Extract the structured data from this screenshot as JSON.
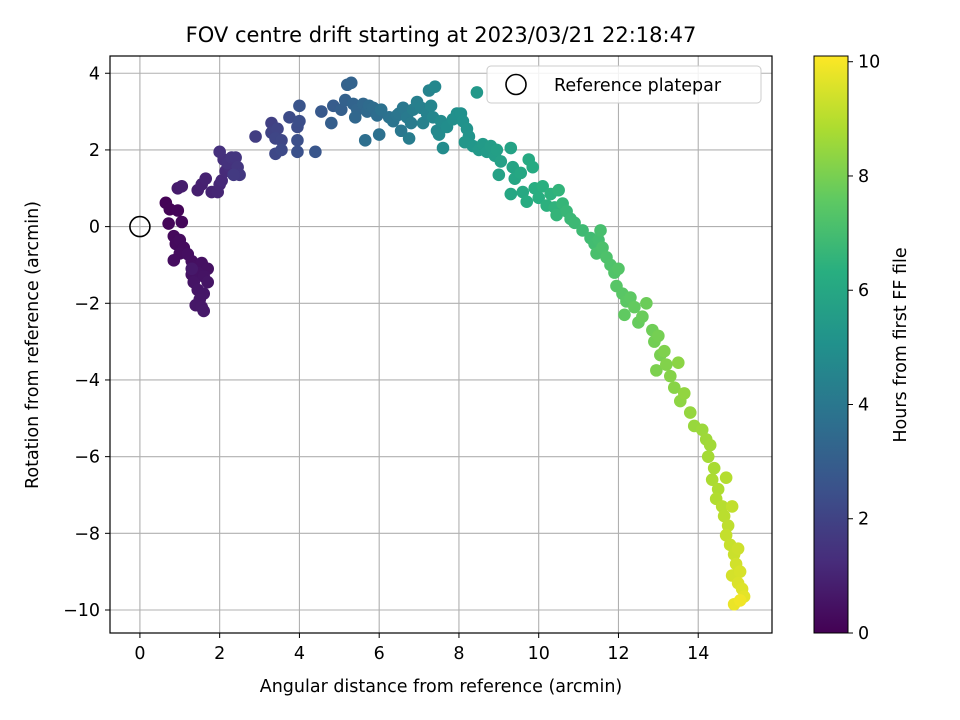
{
  "chart_data": {
    "type": "scatter",
    "title": "FOV centre drift starting at 2023/03/21 22:18:47",
    "xlabel": "Angular distance from reference (arcmin)",
    "ylabel": "Rotation from reference (arcmin)",
    "xlim": [
      -0.75,
      15.85
    ],
    "ylim": [
      -10.6,
      4.45
    ],
    "xticks": [
      0,
      2,
      4,
      6,
      8,
      10,
      12,
      14
    ],
    "yticks": [
      4,
      2,
      0,
      -2,
      -4,
      -6,
      -8,
      -10
    ],
    "xtick_labels": [
      "0",
      "2",
      "4",
      "6",
      "8",
      "10",
      "12",
      "14"
    ],
    "ytick_labels": [
      "4",
      "2",
      "0",
      "−2",
      "−4",
      "−6",
      "−8",
      "−10"
    ],
    "grid": true,
    "legend": {
      "position": "top-right",
      "entries": [
        "Reference platepar"
      ]
    },
    "colorbar": {
      "label": "Hours from first FF file",
      "range": [
        0,
        10.1
      ],
      "ticks": [
        0,
        2,
        4,
        6,
        8,
        10
      ],
      "tick_labels": [
        "0",
        "2",
        "4",
        "6",
        "8",
        "10"
      ],
      "colormap": "viridis"
    },
    "reference_point": {
      "name": "Reference platepar",
      "x": 0,
      "y": 0
    },
    "series": [
      {
        "color_by": "hours",
        "points": [
          {
            "x": 0.65,
            "y": 0.62,
            "h": 0.05
          },
          {
            "x": 0.75,
            "y": 0.45,
            "h": 0.08
          },
          {
            "x": 0.95,
            "y": 0.42,
            "h": 0.12
          },
          {
            "x": 0.72,
            "y": 0.08,
            "h": 0.15
          },
          {
            "x": 1.05,
            "y": 0.12,
            "h": 0.18
          },
          {
            "x": 0.85,
            "y": -0.25,
            "h": 0.22
          },
          {
            "x": 0.9,
            "y": -0.45,
            "h": 0.25
          },
          {
            "x": 1.0,
            "y": -0.35,
            "h": 0.28
          },
          {
            "x": 1.1,
            "y": -0.55,
            "h": 0.3
          },
          {
            "x": 1.0,
            "y": -0.7,
            "h": 0.33
          },
          {
            "x": 0.85,
            "y": -0.88,
            "h": 0.35
          },
          {
            "x": 1.2,
            "y": -0.72,
            "h": 0.38
          },
          {
            "x": 1.3,
            "y": -0.9,
            "h": 0.4
          },
          {
            "x": 1.4,
            "y": -1.05,
            "h": 0.42
          },
          {
            "x": 1.55,
            "y": -0.95,
            "h": 0.44
          },
          {
            "x": 1.7,
            "y": -1.1,
            "h": 0.46
          },
          {
            "x": 1.3,
            "y": -1.25,
            "h": 0.48
          },
          {
            "x": 1.45,
            "y": -1.2,
            "h": 0.5
          },
          {
            "x": 1.6,
            "y": -1.3,
            "h": 0.52
          },
          {
            "x": 1.35,
            "y": -1.45,
            "h": 0.54
          },
          {
            "x": 1.7,
            "y": -1.45,
            "h": 0.56
          },
          {
            "x": 1.45,
            "y": -1.65,
            "h": 0.58
          },
          {
            "x": 1.6,
            "y": -1.75,
            "h": 0.6
          },
          {
            "x": 1.5,
            "y": -1.9,
            "h": 0.62
          },
          {
            "x": 1.4,
            "y": -2.05,
            "h": 0.64
          },
          {
            "x": 1.55,
            "y": -2.1,
            "h": 0.66
          },
          {
            "x": 1.6,
            "y": -2.2,
            "h": 0.68
          },
          {
            "x": 1.3,
            "y": -1.1,
            "h": 0.7
          },
          {
            "x": 0.95,
            "y": 1.0,
            "h": 0.75
          },
          {
            "x": 1.05,
            "y": 1.05,
            "h": 0.8
          },
          {
            "x": 1.45,
            "y": 0.95,
            "h": 0.85
          },
          {
            "x": 1.55,
            "y": 1.1,
            "h": 0.9
          },
          {
            "x": 1.65,
            "y": 1.25,
            "h": 0.95
          },
          {
            "x": 1.8,
            "y": 0.9,
            "h": 1.0
          },
          {
            "x": 1.95,
            "y": 0.9,
            "h": 1.05
          },
          {
            "x": 2.0,
            "y": 1.1,
            "h": 1.1
          },
          {
            "x": 2.05,
            "y": 1.2,
            "h": 1.15
          },
          {
            "x": 2.15,
            "y": 1.45,
            "h": 1.2
          },
          {
            "x": 2.25,
            "y": 1.55,
            "h": 1.25
          },
          {
            "x": 2.35,
            "y": 1.7,
            "h": 1.3
          },
          {
            "x": 2.1,
            "y": 1.75,
            "h": 1.35
          },
          {
            "x": 2.0,
            "y": 1.95,
            "h": 1.4
          },
          {
            "x": 2.2,
            "y": 1.65,
            "h": 1.45
          },
          {
            "x": 2.3,
            "y": 1.8,
            "h": 1.5
          },
          {
            "x": 2.4,
            "y": 1.8,
            "h": 1.55
          },
          {
            "x": 2.45,
            "y": 1.55,
            "h": 1.6
          },
          {
            "x": 2.5,
            "y": 1.35,
            "h": 1.65
          },
          {
            "x": 2.35,
            "y": 1.35,
            "h": 1.7
          },
          {
            "x": 2.9,
            "y": 2.35,
            "h": 1.8
          },
          {
            "x": 3.3,
            "y": 2.7,
            "h": 1.9
          },
          {
            "x": 3.3,
            "y": 2.45,
            "h": 2.0
          },
          {
            "x": 3.45,
            "y": 2.55,
            "h": 2.05
          },
          {
            "x": 3.4,
            "y": 2.3,
            "h": 2.1
          },
          {
            "x": 3.55,
            "y": 2.25,
            "h": 2.15
          },
          {
            "x": 3.4,
            "y": 1.9,
            "h": 2.2
          },
          {
            "x": 3.55,
            "y": 2.0,
            "h": 2.25
          },
          {
            "x": 3.75,
            "y": 2.85,
            "h": 2.3
          },
          {
            "x": 3.95,
            "y": 2.6,
            "h": 2.35
          },
          {
            "x": 4.0,
            "y": 2.75,
            "h": 2.4
          },
          {
            "x": 3.95,
            "y": 2.25,
            "h": 2.45
          },
          {
            "x": 3.95,
            "y": 1.95,
            "h": 2.5
          },
          {
            "x": 4.0,
            "y": 3.15,
            "h": 2.6
          },
          {
            "x": 4.4,
            "y": 1.95,
            "h": 2.7
          },
          {
            "x": 4.55,
            "y": 3.0,
            "h": 2.8
          },
          {
            "x": 4.85,
            "y": 3.15,
            "h": 2.9
          },
          {
            "x": 4.8,
            "y": 2.7,
            "h": 3.0
          },
          {
            "x": 5.05,
            "y": 3.05,
            "h": 3.05
          },
          {
            "x": 5.15,
            "y": 3.3,
            "h": 3.1
          },
          {
            "x": 5.2,
            "y": 3.7,
            "h": 3.15
          },
          {
            "x": 5.3,
            "y": 3.75,
            "h": 3.2
          },
          {
            "x": 5.35,
            "y": 3.2,
            "h": 3.25
          },
          {
            "x": 5.45,
            "y": 3.05,
            "h": 3.3
          },
          {
            "x": 5.4,
            "y": 2.85,
            "h": 3.35
          },
          {
            "x": 5.6,
            "y": 3.2,
            "h": 3.4
          },
          {
            "x": 5.7,
            "y": 3.0,
            "h": 3.45
          },
          {
            "x": 5.75,
            "y": 3.15,
            "h": 3.5
          },
          {
            "x": 5.85,
            "y": 3.1,
            "h": 3.55
          },
          {
            "x": 5.95,
            "y": 2.9,
            "h": 3.6
          },
          {
            "x": 5.65,
            "y": 2.25,
            "h": 3.65
          },
          {
            "x": 6.0,
            "y": 2.4,
            "h": 3.7
          },
          {
            "x": 6.05,
            "y": 3.05,
            "h": 3.75
          },
          {
            "x": 6.25,
            "y": 2.85,
            "h": 3.8
          },
          {
            "x": 6.35,
            "y": 2.75,
            "h": 3.85
          },
          {
            "x": 6.45,
            "y": 2.9,
            "h": 3.9
          },
          {
            "x": 6.5,
            "y": 2.95,
            "h": 3.95
          },
          {
            "x": 6.55,
            "y": 2.5,
            "h": 4.0
          },
          {
            "x": 6.6,
            "y": 3.1,
            "h": 4.05
          },
          {
            "x": 6.7,
            "y": 2.85,
            "h": 4.1
          },
          {
            "x": 6.8,
            "y": 2.7,
            "h": 4.15
          },
          {
            "x": 6.75,
            "y": 2.3,
            "h": 4.2
          },
          {
            "x": 6.85,
            "y": 3.05,
            "h": 4.25
          },
          {
            "x": 6.95,
            "y": 3.25,
            "h": 4.3
          },
          {
            "x": 7.05,
            "y": 3.1,
            "h": 4.35
          },
          {
            "x": 7.1,
            "y": 2.7,
            "h": 4.4
          },
          {
            "x": 7.2,
            "y": 2.95,
            "h": 4.45
          },
          {
            "x": 7.25,
            "y": 3.55,
            "h": 4.5
          },
          {
            "x": 7.3,
            "y": 3.15,
            "h": 4.55
          },
          {
            "x": 7.35,
            "y": 2.85,
            "h": 4.6
          },
          {
            "x": 7.4,
            "y": 3.65,
            "h": 4.65
          },
          {
            "x": 7.45,
            "y": 2.5,
            "h": 4.7
          },
          {
            "x": 7.5,
            "y": 2.4,
            "h": 4.75
          },
          {
            "x": 7.55,
            "y": 2.75,
            "h": 4.8
          },
          {
            "x": 7.6,
            "y": 2.05,
            "h": 4.85
          },
          {
            "x": 7.7,
            "y": 2.6,
            "h": 4.9
          },
          {
            "x": 7.85,
            "y": 2.8,
            "h": 4.95
          },
          {
            "x": 7.95,
            "y": 2.95,
            "h": 5.0
          },
          {
            "x": 8.05,
            "y": 2.95,
            "h": 5.05
          },
          {
            "x": 8.1,
            "y": 2.75,
            "h": 5.1
          },
          {
            "x": 8.2,
            "y": 2.55,
            "h": 5.15
          },
          {
            "x": 8.25,
            "y": 2.35,
            "h": 5.2
          },
          {
            "x": 8.15,
            "y": 2.2,
            "h": 5.25
          },
          {
            "x": 8.35,
            "y": 2.1,
            "h": 5.3
          },
          {
            "x": 8.45,
            "y": 3.5,
            "h": 5.35
          },
          {
            "x": 8.5,
            "y": 2.0,
            "h": 5.4
          },
          {
            "x": 8.6,
            "y": 2.15,
            "h": 5.45
          },
          {
            "x": 8.7,
            "y": 1.95,
            "h": 5.5
          },
          {
            "x": 8.8,
            "y": 2.1,
            "h": 5.55
          },
          {
            "x": 8.9,
            "y": 1.85,
            "h": 5.6
          },
          {
            "x": 8.95,
            "y": 2.0,
            "h": 5.65
          },
          {
            "x": 9.05,
            "y": 1.7,
            "h": 5.7
          },
          {
            "x": 9.0,
            "y": 1.35,
            "h": 5.75
          },
          {
            "x": 9.3,
            "y": 2.05,
            "h": 5.8
          },
          {
            "x": 9.35,
            "y": 1.55,
            "h": 5.85
          },
          {
            "x": 9.4,
            "y": 1.25,
            "h": 5.9
          },
          {
            "x": 9.3,
            "y": 0.85,
            "h": 5.95
          },
          {
            "x": 9.55,
            "y": 1.4,
            "h": 6.0
          },
          {
            "x": 9.6,
            "y": 0.9,
            "h": 6.05
          },
          {
            "x": 9.75,
            "y": 1.75,
            "h": 6.1
          },
          {
            "x": 9.85,
            "y": 1.55,
            "h": 6.15
          },
          {
            "x": 9.7,
            "y": 0.65,
            "h": 6.2
          },
          {
            "x": 9.9,
            "y": 1.0,
            "h": 6.25
          },
          {
            "x": 10.0,
            "y": 0.75,
            "h": 6.3
          },
          {
            "x": 10.1,
            "y": 1.05,
            "h": 6.35
          },
          {
            "x": 10.2,
            "y": 0.55,
            "h": 6.4
          },
          {
            "x": 10.3,
            "y": 0.85,
            "h": 6.45
          },
          {
            "x": 10.4,
            "y": 0.5,
            "h": 6.5
          },
          {
            "x": 10.5,
            "y": 0.95,
            "h": 6.55
          },
          {
            "x": 10.45,
            "y": 0.3,
            "h": 6.6
          },
          {
            "x": 10.6,
            "y": 0.6,
            "h": 6.65
          },
          {
            "x": 10.7,
            "y": 0.4,
            "h": 6.7
          },
          {
            "x": 10.8,
            "y": 0.2,
            "h": 6.75
          },
          {
            "x": 10.9,
            "y": 0.1,
            "h": 6.8
          },
          {
            "x": 11.1,
            "y": -0.1,
            "h": 6.85
          },
          {
            "x": 11.3,
            "y": -0.3,
            "h": 6.9
          },
          {
            "x": 11.4,
            "y": -0.45,
            "h": 6.95
          },
          {
            "x": 11.5,
            "y": -0.35,
            "h": 7.0
          },
          {
            "x": 11.55,
            "y": -0.1,
            "h": 7.05
          },
          {
            "x": 11.45,
            "y": -0.7,
            "h": 7.1
          },
          {
            "x": 11.6,
            "y": -0.55,
            "h": 7.15
          },
          {
            "x": 11.7,
            "y": -0.8,
            "h": 7.2
          },
          {
            "x": 11.8,
            "y": -1.0,
            "h": 7.25
          },
          {
            "x": 11.9,
            "y": -1.2,
            "h": 7.3
          },
          {
            "x": 12.0,
            "y": -1.1,
            "h": 7.35
          },
          {
            "x": 11.95,
            "y": -1.55,
            "h": 7.4
          },
          {
            "x": 12.1,
            "y": -1.75,
            "h": 7.45
          },
          {
            "x": 12.2,
            "y": -1.95,
            "h": 7.5
          },
          {
            "x": 12.3,
            "y": -1.85,
            "h": 7.55
          },
          {
            "x": 12.15,
            "y": -2.3,
            "h": 7.6
          },
          {
            "x": 12.4,
            "y": -2.1,
            "h": 7.65
          },
          {
            "x": 12.5,
            "y": -2.5,
            "h": 7.7
          },
          {
            "x": 12.6,
            "y": -2.35,
            "h": 7.75
          },
          {
            "x": 12.7,
            "y": -2.0,
            "h": 7.8
          },
          {
            "x": 12.85,
            "y": -2.7,
            "h": 7.85
          },
          {
            "x": 12.9,
            "y": -3.0,
            "h": 7.9
          },
          {
            "x": 13.0,
            "y": -2.85,
            "h": 7.95
          },
          {
            "x": 13.05,
            "y": -3.35,
            "h": 8.0
          },
          {
            "x": 12.95,
            "y": -3.75,
            "h": 8.05
          },
          {
            "x": 13.15,
            "y": -3.25,
            "h": 8.1
          },
          {
            "x": 13.2,
            "y": -3.6,
            "h": 8.15
          },
          {
            "x": 13.3,
            "y": -3.9,
            "h": 8.2
          },
          {
            "x": 13.4,
            "y": -4.2,
            "h": 8.25
          },
          {
            "x": 13.5,
            "y": -3.55,
            "h": 8.3
          },
          {
            "x": 13.55,
            "y": -4.55,
            "h": 8.35
          },
          {
            "x": 13.65,
            "y": -4.35,
            "h": 8.4
          },
          {
            "x": 13.8,
            "y": -4.85,
            "h": 8.45
          },
          {
            "x": 13.9,
            "y": -5.2,
            "h": 8.5
          },
          {
            "x": 14.1,
            "y": -5.3,
            "h": 8.55
          },
          {
            "x": 14.2,
            "y": -5.55,
            "h": 8.6
          },
          {
            "x": 14.3,
            "y": -5.7,
            "h": 8.65
          },
          {
            "x": 14.25,
            "y": -6.0,
            "h": 8.7
          },
          {
            "x": 14.4,
            "y": -6.3,
            "h": 8.75
          },
          {
            "x": 14.35,
            "y": -6.6,
            "h": 8.8
          },
          {
            "x": 14.5,
            "y": -6.85,
            "h": 8.85
          },
          {
            "x": 14.45,
            "y": -7.1,
            "h": 8.9
          },
          {
            "x": 14.7,
            "y": -6.55,
            "h": 8.95
          },
          {
            "x": 14.6,
            "y": -7.3,
            "h": 9.0
          },
          {
            "x": 14.65,
            "y": -7.55,
            "h": 9.05
          },
          {
            "x": 14.75,
            "y": -7.8,
            "h": 9.1
          },
          {
            "x": 14.85,
            "y": -7.3,
            "h": 9.15
          },
          {
            "x": 14.7,
            "y": -8.05,
            "h": 9.2
          },
          {
            "x": 14.8,
            "y": -8.3,
            "h": 9.25
          },
          {
            "x": 14.9,
            "y": -8.55,
            "h": 9.3
          },
          {
            "x": 15.0,
            "y": -8.4,
            "h": 9.35
          },
          {
            "x": 14.95,
            "y": -8.8,
            "h": 9.4
          },
          {
            "x": 14.85,
            "y": -9.1,
            "h": 9.45
          },
          {
            "x": 15.05,
            "y": -9.0,
            "h": 9.5
          },
          {
            "x": 15.0,
            "y": -9.3,
            "h": 9.55
          },
          {
            "x": 15.1,
            "y": -9.45,
            "h": 9.6
          },
          {
            "x": 15.15,
            "y": -9.65,
            "h": 9.7
          },
          {
            "x": 14.9,
            "y": -9.85,
            "h": 9.8
          },
          {
            "x": 15.05,
            "y": -9.75,
            "h": 9.9
          }
        ]
      }
    ]
  }
}
